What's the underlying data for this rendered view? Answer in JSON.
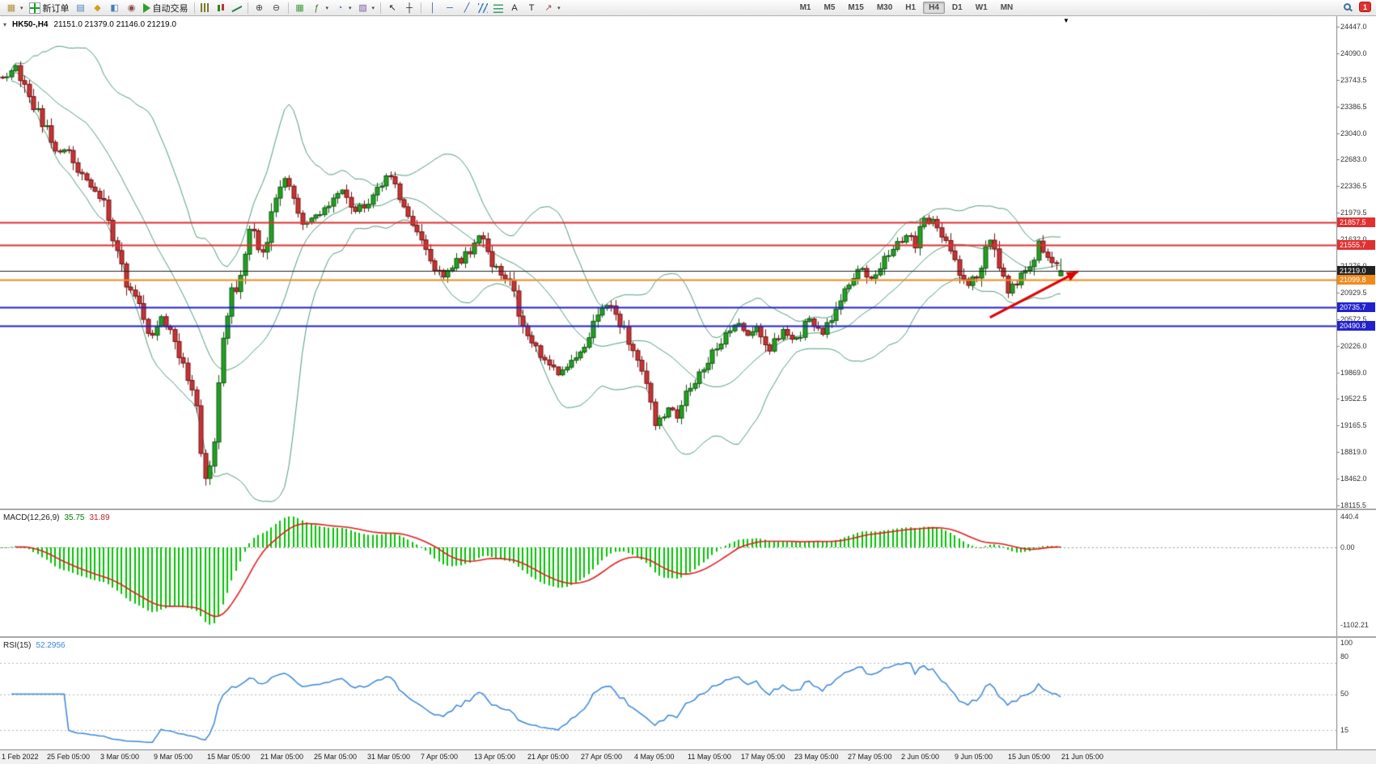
{
  "app": {
    "badge_count": "1"
  },
  "icons": {
    "dropdown": "▾",
    "scroll_to_end": "▼"
  },
  "toolbar": {
    "buttons": [
      {
        "name": "new-chart",
        "icon": "glyph:▦",
        "color": "#b08d3e",
        "caret": true
      },
      {
        "name": "new-order",
        "label": "新订单",
        "icon": "css:neworder"
      },
      {
        "name": "market-watch",
        "icon": "glyph:▤",
        "color": "#4a7ebb"
      },
      {
        "name": "metaeditor",
        "icon": "glyph:◆",
        "color": "#cfa21f"
      },
      {
        "name": "navigator",
        "icon": "glyph:◧",
        "color": "#4a7ebb"
      },
      {
        "name": "sounds",
        "icon": "glyph:◉",
        "color": "#8a4a4a"
      },
      {
        "name": "auto-trading",
        "label": "自动交易",
        "icon": "css:play"
      },
      {
        "sep": true
      },
      {
        "name": "bar-chart",
        "icon": "css:bars"
      },
      {
        "name": "candlestick-chart",
        "icon": "css:candles"
      },
      {
        "name": "line-chart",
        "icon": "css:line"
      },
      {
        "sep": true
      },
      {
        "name": "zoom-in",
        "icon": "glyph:⊕",
        "color": "#444"
      },
      {
        "name": "zoom-out",
        "icon": "glyph:⊖",
        "color": "#444"
      },
      {
        "sep": true
      },
      {
        "name": "tile-windows",
        "icon": "glyph:▦",
        "color": "#3f9e3f"
      },
      {
        "name": "indicators",
        "icon": "glyph:ƒ",
        "color": "#2a7a2a",
        "caret": true
      },
      {
        "name": "periods",
        "icon": "glyph:◔",
        "color": "#4a7ebb",
        "caret": true
      },
      {
        "name": "templates",
        "icon": "glyph:▨",
        "color": "#7a5aa0",
        "caret": true
      },
      {
        "sep": true
      },
      {
        "name": "cursor",
        "icon": "glyph:↖",
        "color": "#222"
      },
      {
        "name": "crosshair",
        "icon": "glyph:┼",
        "color": "#222"
      },
      {
        "sep": true
      },
      {
        "name": "vertical-line",
        "icon": "glyph:│",
        "color": "#2a5a9a"
      },
      {
        "name": "horizontal-line",
        "icon": "glyph:─",
        "color": "#2a5a9a"
      },
      {
        "name": "trendline",
        "icon": "glyph:╱",
        "color": "#2a5a9a"
      },
      {
        "name": "equidistant-channel",
        "icon": "css:channel"
      },
      {
        "name": "fibonacci",
        "icon": "css:fibo"
      },
      {
        "name": "text",
        "icon": "glyph:A",
        "color": "#222"
      },
      {
        "name": "text-label",
        "icon": "glyph:T",
        "color": "#222"
      },
      {
        "name": "arrows",
        "icon": "glyph:↗",
        "color": "#a04a4a",
        "caret": true
      }
    ],
    "timeframes": [
      "M1",
      "M5",
      "M15",
      "M30",
      "H1",
      "H4",
      "D1",
      "W1",
      "MN"
    ],
    "active_timeframe": "H4"
  },
  "chart": {
    "symbol_period": "HK50-,H4",
    "ohlc_text": "21151.0 21379.0 21146.0 21219.0",
    "price_axis_labels": [
      "24447.0",
      "24090.0",
      "23743.5",
      "23386.5",
      "23040.0",
      "22683.0",
      "22336.5",
      "21979.5",
      "21632.0",
      "21276.0",
      "20929.5",
      "20572.5",
      "20226.0",
      "19869.0",
      "19522.5",
      "19165.5",
      "18819.0",
      "18462.0",
      "18115.5"
    ],
    "macd_label": "MACD(12,26,9)",
    "macd_value_main": "35.75",
    "macd_value_signal": "31.89",
    "macd_axis_labels": [
      "440.4",
      "0.00",
      "-1102.21"
    ],
    "rsi_label": "RSI(15)",
    "rsi_value": "52.2956",
    "rsi_axis_labels": [
      "100",
      "80",
      "50",
      "15"
    ],
    "time_labels": [
      "1 Feb 2022",
      "25 Feb 05:00",
      "3 Mar 05:00",
      "9 Mar 05:00",
      "15 Mar 05:00",
      "21 Mar 05:00",
      "25 Mar 05:00",
      "31 Mar 05:00",
      "7 Apr 05:00",
      "13 Apr 05:00",
      "21 Apr 05:00",
      "27 Apr 05:00",
      "4 May 05:00",
      "11 May 05:00",
      "17 May 05:00",
      "23 May 05:00",
      "27 May 05:00",
      "2 Jun 05:00",
      "9 Jun 05:00",
      "15 Jun 05:00",
      "21 Jun 05:00"
    ]
  },
  "chart_data": {
    "type": "candlestick",
    "title": "HK50-,H4",
    "symbol": "HK50-",
    "timeframe": "H4",
    "ohlc_current": {
      "open": 21151.0,
      "high": 21379.0,
      "low": 21146.0,
      "close": 21219.0
    },
    "y_axis": {
      "min": 18115.5,
      "max": 24447.0
    },
    "grid": false,
    "candle_count": 240,
    "price_anchors": [
      [
        0,
        23780
      ],
      [
        3,
        23880
      ],
      [
        6,
        23500
      ],
      [
        9,
        23180
      ],
      [
        12,
        22850
      ],
      [
        15,
        22780
      ],
      [
        19,
        22380
      ],
      [
        22,
        22250
      ],
      [
        24,
        21900
      ],
      [
        26,
        21500
      ],
      [
        28,
        21050
      ],
      [
        31,
        20850
      ],
      [
        33,
        20350
      ],
      [
        36,
        20620
      ],
      [
        40,
        20150
      ],
      [
        42,
        19850
      ],
      [
        44,
        19350
      ],
      [
        46,
        18420
      ],
      [
        48,
        18950
      ],
      [
        50,
        20350
      ],
      [
        52,
        20900
      ],
      [
        54,
        21150
      ],
      [
        56,
        21820
      ],
      [
        59,
        21420
      ],
      [
        62,
        22150
      ],
      [
        64,
        22400
      ],
      [
        66,
        22230
      ],
      [
        68,
        21820
      ],
      [
        71,
        21920
      ],
      [
        74,
        22050
      ],
      [
        77,
        22300
      ],
      [
        80,
        22000
      ],
      [
        83,
        22150
      ],
      [
        86,
        22380
      ],
      [
        88,
        22480
      ],
      [
        90,
        22080
      ],
      [
        92,
        21980
      ],
      [
        95,
        21620
      ],
      [
        97,
        21280
      ],
      [
        100,
        21120
      ],
      [
        103,
        21320
      ],
      [
        106,
        21500
      ],
      [
        108,
        21680
      ],
      [
        111,
        21280
      ],
      [
        114,
        21120
      ],
      [
        116,
        20900
      ],
      [
        118,
        20420
      ],
      [
        121,
        20200
      ],
      [
        124,
        19980
      ],
      [
        126,
        19850
      ],
      [
        129,
        20020
      ],
      [
        132,
        20280
      ],
      [
        135,
        20620
      ],
      [
        137,
        20780
      ],
      [
        140,
        20520
      ],
      [
        142,
        20320
      ],
      [
        145,
        19950
      ],
      [
        148,
        19180
      ],
      [
        151,
        19380
      ],
      [
        153,
        19300
      ],
      [
        156,
        19680
      ],
      [
        158,
        19820
      ],
      [
        161,
        20120
      ],
      [
        164,
        20420
      ],
      [
        166,
        20520
      ],
      [
        169,
        20380
      ],
      [
        171,
        20520
      ],
      [
        174,
        20180
      ],
      [
        177,
        20420
      ],
      [
        180,
        20320
      ],
      [
        183,
        20560
      ],
      [
        186,
        20380
      ],
      [
        189,
        20720
      ],
      [
        192,
        21020
      ],
      [
        195,
        21280
      ],
      [
        197,
        21120
      ],
      [
        200,
        21380
      ],
      [
        202,
        21520
      ],
      [
        205,
        21680
      ],
      [
        207,
        21560
      ],
      [
        209,
        21900
      ],
      [
        212,
        21840
      ],
      [
        214,
        21640
      ],
      [
        217,
        21220
      ],
      [
        219,
        21020
      ],
      [
        222,
        21280
      ],
      [
        224,
        21600
      ],
      [
        226,
        21300
      ],
      [
        228,
        20960
      ],
      [
        231,
        21120
      ],
      [
        233,
        21320
      ],
      [
        235,
        21580
      ],
      [
        238,
        21380
      ],
      [
        240,
        21219
      ]
    ],
    "overlays": {
      "bollinger": {
        "period": 20,
        "deviation": 2,
        "color": "#4f9e7a"
      }
    },
    "horizontal_levels": [
      {
        "price": 21857.5,
        "label": "21857.5",
        "color": "#e03030",
        "line_width": 2
      },
      {
        "price": 21555.7,
        "label": "21555.7",
        "color": "#e03030",
        "line_width": 2
      },
      {
        "price": 21219.0,
        "label": "21219.0",
        "color": "#222222",
        "line_width": 1
      },
      {
        "price": 21099.8,
        "label": "21099.8",
        "color": "#ef8a1d",
        "line_width": 2
      },
      {
        "price": 20735.7,
        "label": "20735.7",
        "color": "#2222cc",
        "line_width": 2
      },
      {
        "price": 20490.8,
        "label": "20490.8",
        "color": "#2222cc",
        "line_width": 2
      }
    ],
    "trend_arrow": {
      "from_bar": 224,
      "from_price": 20600,
      "to_bar": 244,
      "to_price": 21210,
      "color": "#e00000"
    },
    "macd": {
      "params": [
        12,
        26,
        9
      ],
      "value_main": 35.75,
      "value_signal": 31.89,
      "axis_max": 440.4,
      "axis_min": -1102.21,
      "histogram_color": "#00c400",
      "signal_color": "#e02020"
    },
    "rsi": {
      "period": 15,
      "value": 52.2956,
      "levels": [
        80,
        50,
        15
      ],
      "axis_labels": [
        100,
        80,
        50,
        15
      ],
      "line_color": "#3a87d9"
    }
  }
}
